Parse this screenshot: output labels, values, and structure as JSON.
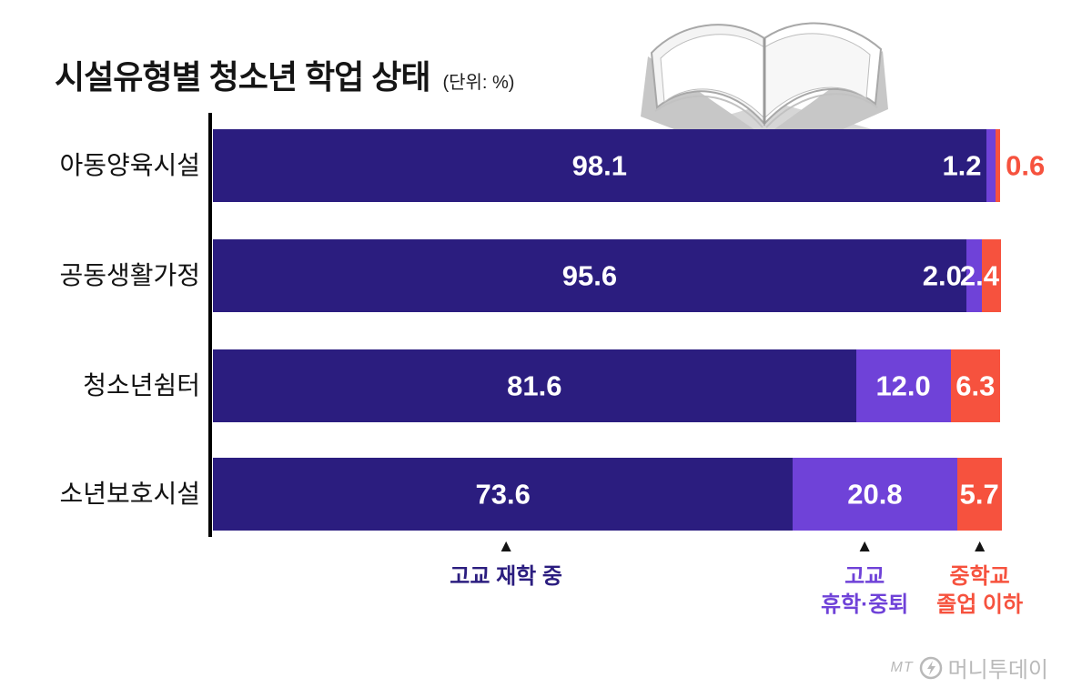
{
  "title": {
    "text": "시설유형별 청소년 학업 상태",
    "unit": "(단위: %)"
  },
  "chart_data": {
    "type": "bar",
    "orientation": "horizontal",
    "stacked": true,
    "title": "시설유형별 청소년 학업 상태",
    "unit": "%",
    "xlim": [
      0,
      100
    ],
    "grid": false,
    "legend_position": "bottom",
    "marker": "▲",
    "categories": [
      "아동양육시설",
      "공동생활가정",
      "청소년쉼터",
      "소년보호시설"
    ],
    "series": [
      {
        "name": "고교 재학 중",
        "color": "#2b1d7f",
        "values": [
          98.1,
          95.6,
          81.6,
          73.6
        ]
      },
      {
        "name": "고교 휴학·중퇴",
        "color": "#6f42d8",
        "values": [
          1.2,
          2.0,
          12.0,
          20.8
        ]
      },
      {
        "name": "중학교 졸업 이하",
        "color": "#f6523e",
        "values": [
          0.6,
          2.4,
          6.3,
          5.7
        ]
      }
    ],
    "annotations": [
      {
        "label": "고교 재학 중",
        "lines": [
          "고교 재학 중"
        ],
        "color": "#2b1d7f",
        "x_percent": 37.2
      },
      {
        "label": "고교 휴학·중퇴",
        "lines": [
          "고교",
          "휴학·중퇴"
        ],
        "color": "#6f42d8",
        "x_percent": 82.7
      },
      {
        "label": "중학교 졸업 이하",
        "lines": [
          "중학교",
          "졸업 이하"
        ],
        "color": "#f6523e",
        "x_percent": 97.3
      }
    ]
  },
  "decor": {
    "book_icon": "open-book-illustration"
  },
  "footer": {
    "brand_mark": "MT",
    "brand_name": "머니투데이"
  }
}
